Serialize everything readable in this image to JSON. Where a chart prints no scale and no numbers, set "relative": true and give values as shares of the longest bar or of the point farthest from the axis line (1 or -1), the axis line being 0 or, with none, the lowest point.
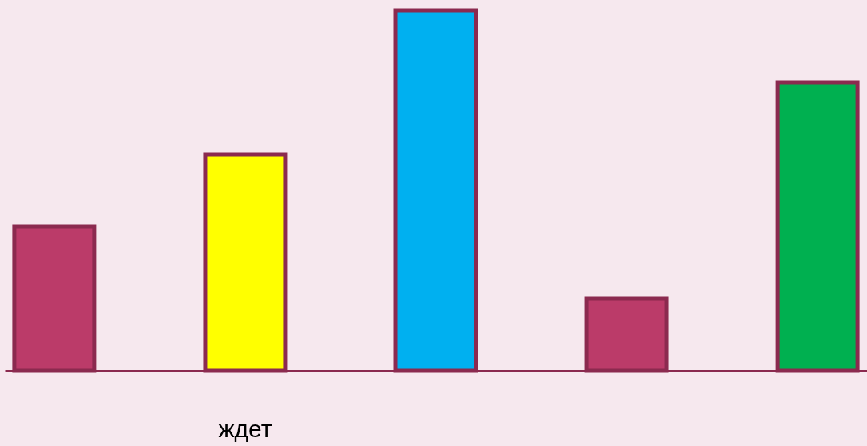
{
  "chart_data": {
    "type": "bar",
    "relative": true,
    "categories": [
      null,
      "ждет",
      null,
      null,
      null
    ],
    "values": [
      0.4,
      0.6,
      1,
      0.2,
      0.8
    ],
    "colors": [
      "#bb3b69",
      "#ffff00",
      "#00b0f0",
      "#bb3b69",
      "#00b050"
    ],
    "legend": false
  }
}
